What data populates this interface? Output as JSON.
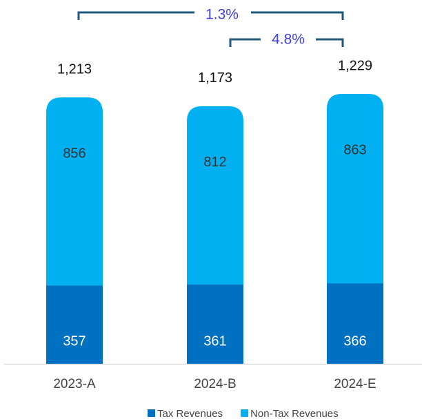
{
  "chart_data": {
    "type": "stacked_bar",
    "categories": [
      "2023-A",
      "2024-B",
      "2024-E"
    ],
    "series": [
      {
        "name": "Tax Revenues",
        "color": "#0070c0",
        "values": [
          357,
          361,
          366
        ]
      },
      {
        "name": "Non-Tax Revenues",
        "color": "#00b0f0",
        "values": [
          856,
          812,
          863
        ]
      }
    ],
    "totals": [
      1213,
      1173,
      1229
    ],
    "total_labels": [
      "1,213",
      "1,173",
      "1,229"
    ],
    "annotations": [
      "1.3%",
      "4.8%"
    ],
    "legend": "bottom"
  }
}
